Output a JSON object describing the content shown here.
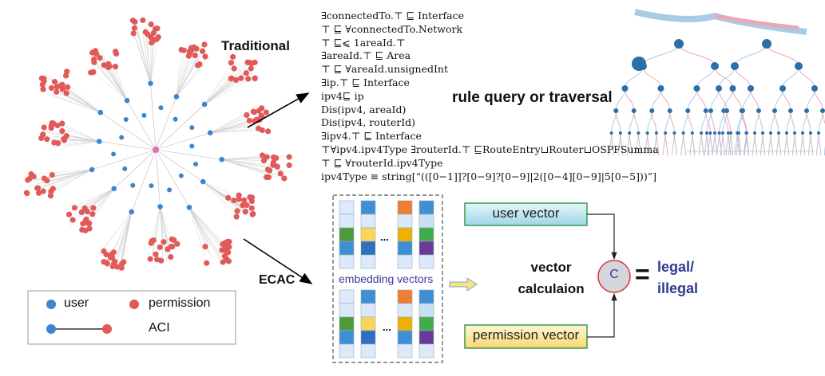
{
  "labels": {
    "traditional": "Traditional",
    "ecac": "ECAC",
    "rule_query": "rule query or traversal",
    "embedding_vectors": "embedding vectors",
    "user_vector": "user vector",
    "permission_vector": "permission vector",
    "vector_calc_line1": "vector",
    "vector_calc_line2": "calculaion",
    "operator": "C",
    "equals": "=",
    "result_line1": "legal/",
    "result_line2": "illegal",
    "ellipsis": "..."
  },
  "rules": [
    "∃connectedTo.⊤ ⊑ Interface",
    "⊤ ⊑ ∀connectedTo.Network",
    "⊤ ⊑⩽ 1areaId.⊤",
    "∃areaId.⊤ ⊑ Area",
    "⊤ ⊑ ∀areaId.unsignedInt",
    "∃ip.⊤ ⊑ Interface",
    "ipv4⊑ ip",
    "Dis(ipv4, areaId)",
    "Dis(ipv4, routerId)",
    "∃ipv4.⊤ ⊑ Interface",
    "⊤∀ipv4.ipv4Type ∃routerId.⊤ ⊑RouteEntry⊔Router⊔OSPFSumma",
    "⊤ ⊑ ∀routerId.ipv4Type",
    "ipv4Type ≡ string[“(([0−1]]?[0−9]?[0−9]|2([0−4][0−9]|5[0−5]))”]"
  ],
  "legend": {
    "user": "user",
    "permission": "permission",
    "aci": "ACI"
  },
  "colors": {
    "user": "#3a86d0",
    "permission": "#e05a5a",
    "result": "#2e3a8c",
    "box_border": "#3a9a4a"
  }
}
